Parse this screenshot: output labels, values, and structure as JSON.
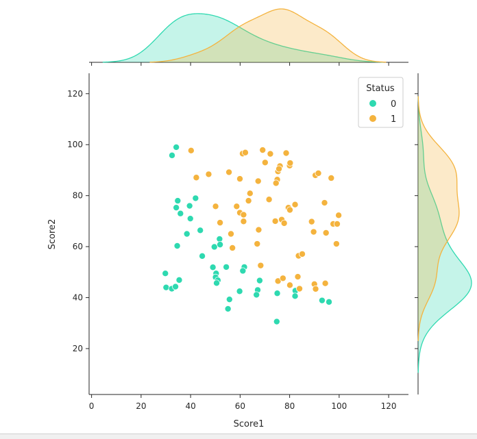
{
  "chart_data": {
    "type": "scatter",
    "subtype": "jointplot",
    "xlabel": "Score1",
    "ylabel": "Score2",
    "xlim": [
      -1,
      128
    ],
    "ylim": [
      2,
      128
    ],
    "xticks": [
      0,
      20,
      40,
      60,
      80,
      100,
      120
    ],
    "yticks": [
      20,
      40,
      60,
      80,
      100,
      120
    ],
    "grid": false,
    "legend": {
      "title": "Status",
      "placement": "top-right"
    },
    "series": [
      {
        "name": "0",
        "color": "#2ed9b0",
        "points": [
          [
            34.2,
            99.0
          ],
          [
            32.5,
            95.8
          ],
          [
            34.8,
            78.0
          ],
          [
            34.2,
            75.3
          ],
          [
            35.9,
            73.0
          ],
          [
            39.6,
            76.0
          ],
          [
            42.0,
            79.0
          ],
          [
            39.9,
            71.0
          ],
          [
            38.5,
            65.0
          ],
          [
            43.9,
            66.4
          ],
          [
            34.6,
            60.3
          ],
          [
            44.7,
            56.3
          ],
          [
            49.6,
            59.9
          ],
          [
            51.7,
            63.0
          ],
          [
            51.9,
            60.8
          ],
          [
            54.4,
            52.0
          ],
          [
            49.0,
            51.9
          ],
          [
            50.3,
            49.5
          ],
          [
            50.1,
            48.0
          ],
          [
            51.0,
            46.8
          ],
          [
            50.5,
            45.7
          ],
          [
            29.8,
            49.5
          ],
          [
            30.1,
            44.0
          ],
          [
            32.4,
            43.5
          ],
          [
            33.9,
            44.3
          ],
          [
            35.4,
            46.9
          ],
          [
            61.7,
            52.0
          ],
          [
            61.1,
            50.5
          ],
          [
            59.8,
            42.5
          ],
          [
            55.7,
            39.3
          ],
          [
            55.1,
            35.6
          ],
          [
            67.1,
            43.0
          ],
          [
            66.6,
            41.1
          ],
          [
            67.9,
            46.7
          ],
          [
            75.0,
            41.7
          ],
          [
            82.3,
            42.7
          ],
          [
            82.2,
            40.6
          ],
          [
            93.1,
            38.9
          ],
          [
            95.9,
            38.3
          ],
          [
            74.8,
            30.6
          ]
        ]
      },
      {
        "name": "1",
        "color": "#f4b33e",
        "points": [
          [
            40.2,
            97.7
          ],
          [
            61.0,
            96.5
          ],
          [
            62.1,
            96.9
          ],
          [
            69.1,
            97.9
          ],
          [
            72.2,
            96.4
          ],
          [
            78.6,
            96.7
          ],
          [
            70.1,
            93.0
          ],
          [
            76.1,
            91.6
          ],
          [
            80.0,
            91.8
          ],
          [
            80.2,
            92.8
          ],
          [
            75.3,
            89.5
          ],
          [
            75.7,
            90.5
          ],
          [
            75.0,
            86.3
          ],
          [
            74.5,
            84.9
          ],
          [
            67.3,
            85.7
          ],
          [
            55.5,
            89.2
          ],
          [
            47.3,
            88.4
          ],
          [
            42.3,
            87.1
          ],
          [
            90.4,
            88.0
          ],
          [
            91.6,
            88.8
          ],
          [
            96.8,
            86.9
          ],
          [
            59.9,
            86.6
          ],
          [
            64.0,
            80.9
          ],
          [
            71.7,
            78.5
          ],
          [
            63.4,
            78.0
          ],
          [
            58.6,
            75.8
          ],
          [
            50.1,
            75.8
          ],
          [
            59.9,
            73.3
          ],
          [
            61.4,
            72.5
          ],
          [
            82.2,
            76.5
          ],
          [
            79.5,
            75.3
          ],
          [
            80.1,
            74.4
          ],
          [
            94.1,
            77.2
          ],
          [
            99.8,
            72.3
          ],
          [
            61.4,
            69.9
          ],
          [
            51.9,
            69.4
          ],
          [
            74.2,
            70.0
          ],
          [
            76.8,
            70.6
          ],
          [
            77.8,
            69.2
          ],
          [
            88.9,
            69.8
          ],
          [
            97.6,
            68.9
          ],
          [
            99.2,
            68.9
          ],
          [
            56.3,
            65.0
          ],
          [
            67.5,
            66.6
          ],
          [
            89.7,
            65.8
          ],
          [
            94.7,
            65.4
          ],
          [
            56.9,
            59.5
          ],
          [
            66.9,
            61.1
          ],
          [
            98.9,
            61.1
          ],
          [
            83.6,
            56.4
          ],
          [
            85.1,
            57.1
          ],
          [
            68.3,
            52.6
          ],
          [
            75.3,
            46.5
          ],
          [
            77.3,
            47.6
          ],
          [
            80.1,
            44.9
          ],
          [
            83.3,
            48.2
          ],
          [
            84.0,
            43.5
          ],
          [
            90.0,
            45.3
          ],
          [
            90.5,
            43.4
          ],
          [
            94.4,
            45.6
          ]
        ]
      }
    ]
  }
}
